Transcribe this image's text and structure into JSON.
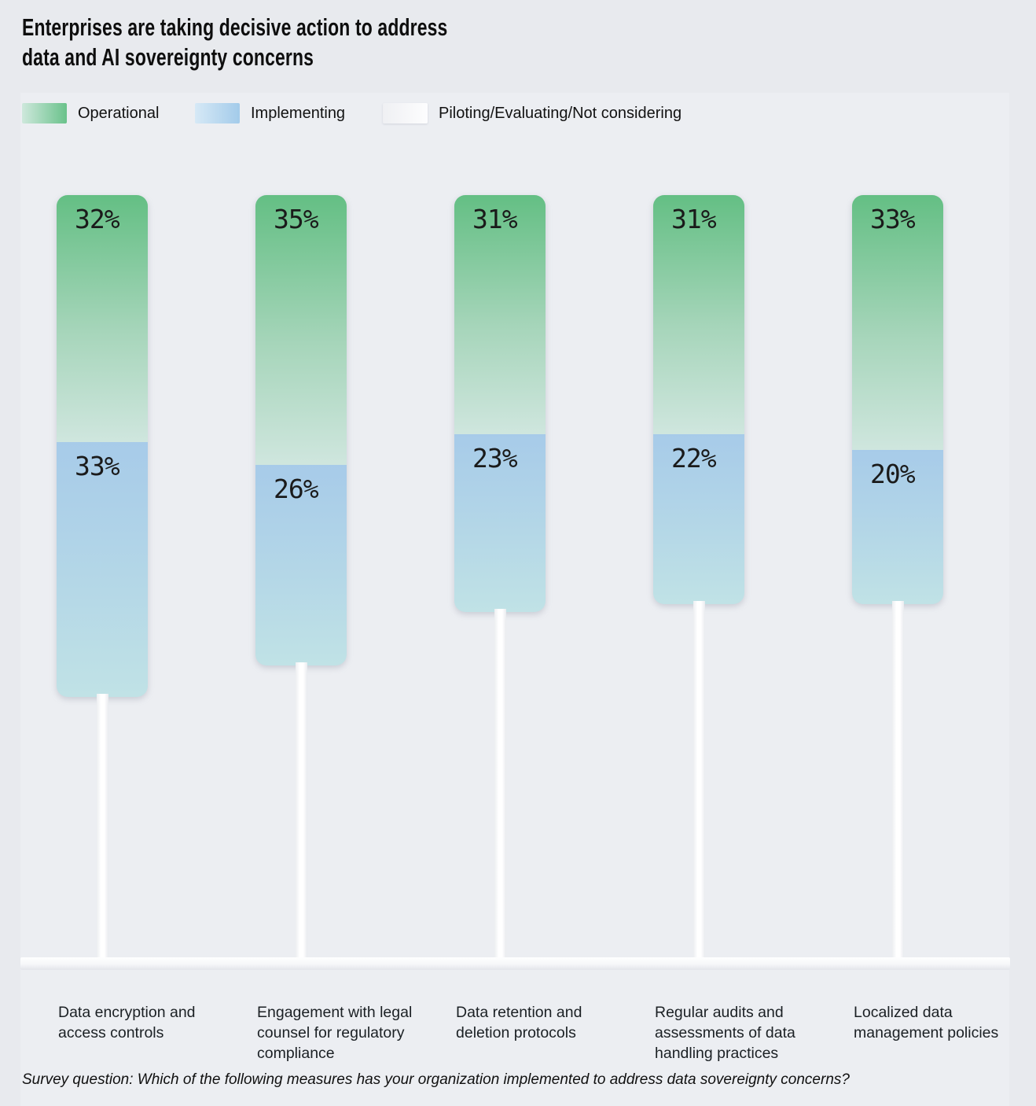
{
  "title": {
    "line1": "Enterprises are taking decisive action to address",
    "line2": "data and AI sovereignty concerns"
  },
  "legend": {
    "items": [
      {
        "label": "Operational",
        "swatch": "green"
      },
      {
        "label": "Implementing",
        "swatch": "blue"
      },
      {
        "label": "Piloting/Evaluating/Not considering",
        "swatch": "white"
      }
    ]
  },
  "footnote": "Survey question: Which of the following measures has your organization implemented to address data sovereignty concerns?",
  "colors": {
    "operational_top": "#64bf84",
    "operational_bottom": "#cfe6de",
    "implementing_top": "#a7cbe9",
    "implementing_bottom": "#c0e2e6",
    "piloting": "#ffffff",
    "background": "#e8eaee",
    "panel": "#eceef2",
    "text": "#1a1a1a"
  },
  "chart_data": {
    "type": "bar",
    "stacked": true,
    "orientation": "vertical",
    "title": "Enterprises are taking decisive action to address data and AI sovereignty concerns",
    "categories": [
      "Data encryption and access controls",
      "Engagement with legal counsel for regulatory compliance",
      "Data retention and deletion protocols",
      "Regular audits and assessments of data handling practices",
      "Localized data management policies"
    ],
    "series": [
      {
        "name": "Operational",
        "values": [
          32,
          35,
          31,
          31,
          33
        ],
        "labeled": true
      },
      {
        "name": "Implementing",
        "values": [
          33,
          26,
          23,
          22,
          20
        ],
        "labeled": true
      },
      {
        "name": "Piloting/Evaluating/Not considering",
        "values": [
          35,
          39,
          46,
          47,
          47
        ],
        "labeled": false,
        "note": "drawn as thin unlabeled stem extending to the 100% baseline"
      }
    ],
    "value_format": "percent",
    "ylim": [
      0,
      100
    ],
    "grid": false,
    "legend_position": "top"
  }
}
